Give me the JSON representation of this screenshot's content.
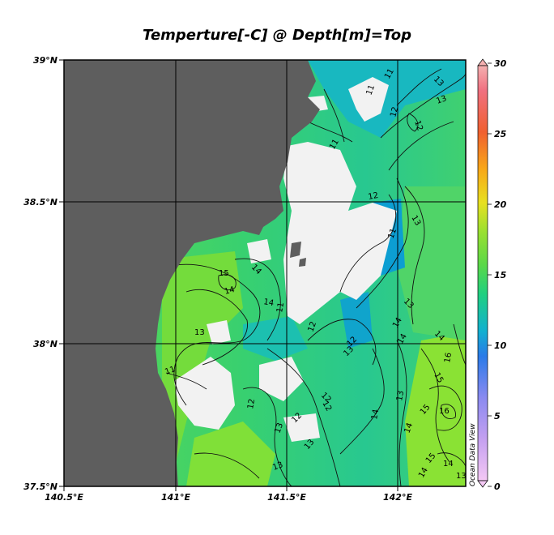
{
  "title": "Temperture[-C] @ Depth[m]=Top",
  "x_ticks": [
    "140.5°E",
    "141°E",
    "141.5°E",
    "142°E"
  ],
  "y_ticks": [
    "39°N",
    "38.5°N",
    "38°N",
    "37.5°N"
  ],
  "colorbar": {
    "ticks": [
      "30",
      "25",
      "20",
      "15",
      "10",
      "5",
      "0"
    ],
    "credit": "Ocean Data View"
  },
  "contour_labels": [
    "11",
    "11",
    "13",
    "12",
    "13",
    "12",
    "11",
    "11",
    "12",
    "13",
    "11",
    "12",
    "15",
    "14",
    "14",
    "14",
    "13",
    "11",
    "12",
    "12",
    "13",
    "13",
    "14",
    "14",
    "14",
    "13",
    "15",
    "16",
    "12",
    "12",
    "13",
    "14",
    "14",
    "15",
    "16",
    "12",
    "13",
    "13",
    "14",
    "13",
    "15",
    "14"
  ],
  "colors": {
    "land": "#5e5e5e",
    "no_data": "#f2f2f2",
    "water_warm": "#7be040",
    "water_mid": "#22d08a",
    "water_cool": "#0aa8c8"
  }
}
